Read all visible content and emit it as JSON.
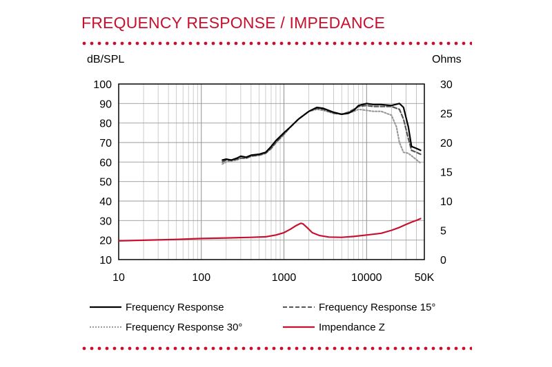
{
  "title": "FREQUENCY RESPONSE / IMPEDANCE",
  "colors": {
    "accent": "#c8102e",
    "fr": "#000000",
    "fr15": "#555555",
    "fr30": "#999999",
    "grid": "#b8b8b8"
  },
  "chart_data": {
    "type": "line",
    "title": "FREQUENCY RESPONSE / IMPEDANCE",
    "xlabel": "",
    "ylabel_left": "dB/SPL",
    "ylabel_right": "Ohms",
    "x_scale": "log",
    "xlim": [
      10,
      50000
    ],
    "ylim_left": [
      10,
      100
    ],
    "ylim_right": [
      0,
      30
    ],
    "x_ticks": [
      10,
      100,
      1000,
      10000,
      50000
    ],
    "x_tick_labels": [
      "10",
      "100",
      "1000",
      "10000",
      "50K"
    ],
    "y_left_ticks": [
      "100",
      "90",
      "80",
      "70",
      "60",
      "50",
      "40",
      "30",
      "20",
      "10"
    ],
    "y_right_ticks": [
      "30",
      "25",
      "20",
      "15",
      "10",
      "5",
      "0"
    ],
    "grid": true,
    "legend_position": "bottom",
    "series": [
      {
        "name": "Frequency Response",
        "axis": "left",
        "color": "#000000",
        "dash": "solid",
        "points": [
          [
            180,
            61
          ],
          [
            200,
            61.5
          ],
          [
            230,
            61
          ],
          [
            270,
            62
          ],
          [
            300,
            63
          ],
          [
            350,
            62.5
          ],
          [
            400,
            63.5
          ],
          [
            500,
            64
          ],
          [
            600,
            65
          ],
          [
            700,
            68
          ],
          [
            800,
            71
          ],
          [
            1000,
            75
          ],
          [
            1200,
            78
          ],
          [
            1500,
            82
          ],
          [
            2000,
            86
          ],
          [
            2500,
            88
          ],
          [
            3000,
            87.5
          ],
          [
            4000,
            85.5
          ],
          [
            5000,
            84.5
          ],
          [
            6000,
            85
          ],
          [
            7000,
            86.5
          ],
          [
            8000,
            89
          ],
          [
            10000,
            90
          ],
          [
            12000,
            89.5
          ],
          [
            15000,
            89.5
          ],
          [
            20000,
            89
          ],
          [
            25000,
            90
          ],
          [
            28000,
            88
          ],
          [
            32000,
            78
          ],
          [
            35000,
            68
          ],
          [
            40000,
            67
          ],
          [
            45000,
            66
          ]
        ]
      },
      {
        "name": "Frequency Response 15°",
        "axis": "left",
        "color": "#555555",
        "dash": "dashed",
        "points": [
          [
            180,
            60
          ],
          [
            200,
            61
          ],
          [
            230,
            61
          ],
          [
            270,
            61.5
          ],
          [
            300,
            62
          ],
          [
            350,
            62
          ],
          [
            400,
            63
          ],
          [
            500,
            63.5
          ],
          [
            600,
            64.5
          ],
          [
            700,
            67
          ],
          [
            800,
            70
          ],
          [
            1000,
            74.5
          ],
          [
            1200,
            78
          ],
          [
            1500,
            82
          ],
          [
            2000,
            86
          ],
          [
            2500,
            87.5
          ],
          [
            3000,
            87
          ],
          [
            4000,
            85
          ],
          [
            5000,
            84.5
          ],
          [
            6000,
            85.5
          ],
          [
            7000,
            87
          ],
          [
            8000,
            88.5
          ],
          [
            10000,
            89
          ],
          [
            12000,
            88.5
          ],
          [
            15000,
            88.5
          ],
          [
            20000,
            88.5
          ],
          [
            25000,
            87
          ],
          [
            28000,
            82
          ],
          [
            32000,
            72
          ],
          [
            35000,
            66
          ],
          [
            40000,
            65
          ],
          [
            45000,
            64
          ]
        ]
      },
      {
        "name": "Frequency Response 30°",
        "axis": "left",
        "color": "#999999",
        "dash": "dotted",
        "points": [
          [
            180,
            59
          ],
          [
            200,
            60
          ],
          [
            230,
            60.5
          ],
          [
            270,
            61
          ],
          [
            300,
            62
          ],
          [
            350,
            62
          ],
          [
            400,
            63
          ],
          [
            500,
            63.5
          ],
          [
            600,
            64.5
          ],
          [
            700,
            67
          ],
          [
            800,
            70
          ],
          [
            1000,
            74
          ],
          [
            1200,
            78
          ],
          [
            1500,
            82
          ],
          [
            2000,
            86
          ],
          [
            2500,
            87
          ],
          [
            3000,
            86.5
          ],
          [
            4000,
            85
          ],
          [
            5000,
            84.5
          ],
          [
            6000,
            85
          ],
          [
            7000,
            86
          ],
          [
            8000,
            87
          ],
          [
            10000,
            86.5
          ],
          [
            12000,
            86
          ],
          [
            15000,
            86
          ],
          [
            20000,
            84
          ],
          [
            23000,
            78
          ],
          [
            25000,
            70
          ],
          [
            28000,
            65
          ],
          [
            32000,
            64.5
          ],
          [
            38000,
            62
          ],
          [
            45000,
            59.5
          ]
        ]
      },
      {
        "name": "Impendance Z",
        "axis": "right",
        "color": "#c8102e",
        "dash": "solid",
        "points": [
          [
            10,
            3.2
          ],
          [
            20,
            3.3
          ],
          [
            50,
            3.45
          ],
          [
            100,
            3.6
          ],
          [
            200,
            3.7
          ],
          [
            400,
            3.8
          ],
          [
            600,
            3.9
          ],
          [
            800,
            4.2
          ],
          [
            1000,
            4.6
          ],
          [
            1200,
            5.2
          ],
          [
            1400,
            5.8
          ],
          [
            1600,
            6.2
          ],
          [
            1700,
            6.1
          ],
          [
            1900,
            5.5
          ],
          [
            2200,
            4.6
          ],
          [
            2700,
            4.1
          ],
          [
            3500,
            3.85
          ],
          [
            5000,
            3.8
          ],
          [
            7000,
            3.95
          ],
          [
            10000,
            4.2
          ],
          [
            15000,
            4.5
          ],
          [
            20000,
            5.0
          ],
          [
            25000,
            5.5
          ],
          [
            30000,
            6.0
          ],
          [
            35000,
            6.4
          ],
          [
            40000,
            6.7
          ],
          [
            45000,
            7.0
          ]
        ]
      }
    ]
  }
}
